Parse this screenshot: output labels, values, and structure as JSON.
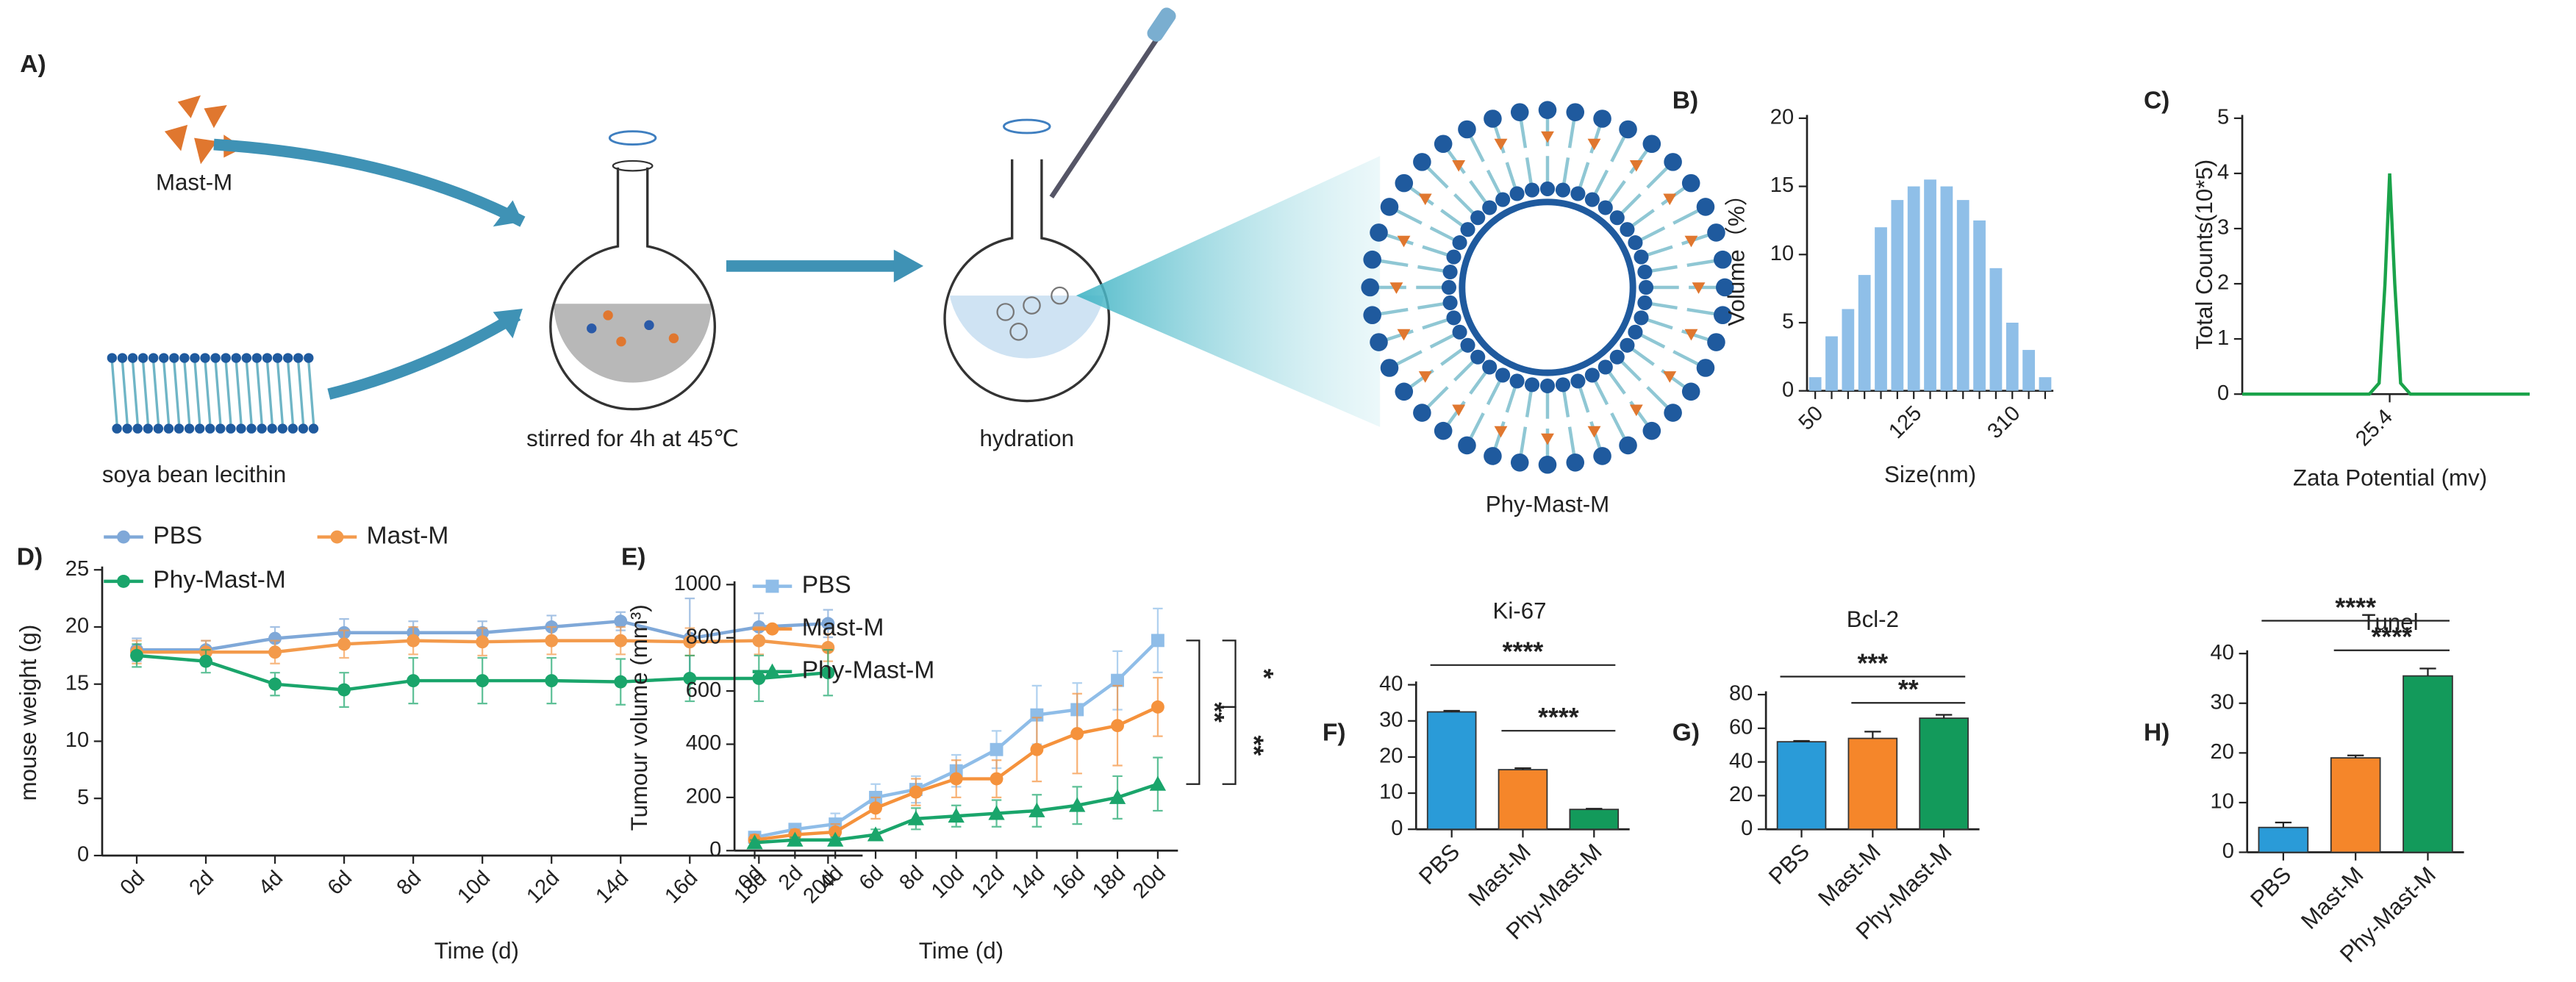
{
  "panels": [
    "A)",
    "B)",
    "C)",
    "D)",
    "E)",
    "F)",
    "G)",
    "H)"
  ],
  "diagram": {
    "drug": "Mast-M",
    "lipid": "soya bean lecithin",
    "step1": "stirred for 4h at 45℃",
    "step2": "hydration",
    "product": "Phy-Mast-M"
  },
  "chart_data": [
    {
      "type": "bar",
      "xlabel": "Size(nm)",
      "ylabel": "Volume（%）",
      "categories": [
        "50",
        null,
        null,
        null,
        null,
        null,
        "125",
        null,
        null,
        null,
        null,
        null,
        "310",
        null,
        null
      ],
      "values": [
        1,
        4,
        6,
        8.5,
        12,
        14,
        15,
        15.5,
        15,
        14,
        12.5,
        9,
        5,
        3,
        1
      ],
      "color": "#8fbfe8",
      "ylim": [
        0,
        20
      ],
      "yticks": [
        0,
        5,
        10,
        15,
        20
      ]
    },
    {
      "type": "line",
      "xlabel": "Zata Potential (mv)",
      "ylabel": "Total Counts(10*5)",
      "x": [
        -50,
        -20,
        0,
        15,
        20,
        23,
        25.4,
        28,
        31,
        36,
        50,
        97
      ],
      "series": [
        {
          "color": "#1aa34a",
          "values": [
            0,
            0,
            0,
            0,
            0.2,
            2,
            4,
            2,
            0.2,
            0,
            0,
            0
          ]
        }
      ],
      "xlim": [
        -50,
        97
      ],
      "xticks": [
        25.4
      ],
      "ylim": [
        0,
        5
      ],
      "yticks": [
        0,
        1,
        2,
        3,
        4,
        5
      ]
    },
    {
      "type": "line",
      "xlabel": "Time (d)",
      "ylabel": "mouse weight (g)",
      "categories": [
        "0d",
        "2d",
        "4d",
        "6d",
        "8d",
        "10d",
        "12d",
        "14d",
        "16d",
        "18d",
        "20d"
      ],
      "series": [
        {
          "name": "PBS",
          "color": "#7fa8d8",
          "marker": "circle",
          "values": [
            18,
            18,
            19,
            19.5,
            19.5,
            19.5,
            20,
            20.5,
            19,
            20,
            20.3
          ],
          "errors": [
            1,
            0.8,
            1,
            1.2,
            1,
            1,
            1,
            0.8,
            3.5,
            1.2,
            1.2
          ]
        },
        {
          "name": "Mast-M",
          "color": "#f39a4b",
          "marker": "circle",
          "values": [
            17.8,
            17.8,
            17.8,
            18.5,
            18.8,
            18.7,
            18.8,
            18.8,
            18.7,
            18.8,
            18.2
          ],
          "errors": [
            1,
            1,
            1,
            1.2,
            1.2,
            1.2,
            1.2,
            1.2,
            1.2,
            1.2,
            1.2
          ]
        },
        {
          "name": "Phy-Mast-M",
          "color": "#1aa56b",
          "marker": "circle",
          "values": [
            17.5,
            17,
            15,
            14.5,
            15.3,
            15.3,
            15.3,
            15.2,
            15.5,
            15.5,
            16
          ],
          "errors": [
            1,
            1,
            1,
            1.5,
            2,
            2,
            2,
            2,
            2,
            2,
            2
          ]
        }
      ],
      "ylim": [
        0,
        25
      ],
      "yticks": [
        0,
        5,
        10,
        15,
        20,
        25
      ]
    },
    {
      "type": "line",
      "xlabel": "Time (d)",
      "ylabel": "Tumour volume (mm³)",
      "categories": [
        "0d",
        "2d",
        "4d",
        "6d",
        "8d",
        "10d",
        "12d",
        "14d",
        "16d",
        "18d",
        "20d"
      ],
      "series": [
        {
          "name": "PBS",
          "color": "#8fbde8",
          "marker": "square",
          "values": [
            50,
            80,
            100,
            200,
            230,
            300,
            380,
            510,
            530,
            640,
            790
          ],
          "errors": [
            20,
            20,
            40,
            50,
            50,
            60,
            70,
            110,
            100,
            110,
            120
          ]
        },
        {
          "name": "Mast-M",
          "color": "#f5923c",
          "marker": "circle",
          "values": [
            40,
            60,
            70,
            160,
            220,
            270,
            270,
            380,
            440,
            470,
            540
          ],
          "errors": [
            20,
            20,
            30,
            40,
            50,
            70,
            70,
            120,
            150,
            150,
            110
          ]
        },
        {
          "name": "Phy-Mast-M",
          "color": "#1aa56b",
          "marker": "triangle",
          "values": [
            30,
            40,
            40,
            60,
            120,
            130,
            140,
            150,
            170,
            200,
            250
          ],
          "errors": [
            10,
            10,
            10,
            20,
            40,
            40,
            50,
            60,
            70,
            80,
            100
          ]
        }
      ],
      "ylim": [
        0,
        1000
      ],
      "yticks": [
        0,
        200,
        400,
        600,
        800,
        1000
      ],
      "annotations": [
        "*",
        "**",
        "**"
      ]
    },
    {
      "type": "bar",
      "title": "Ki-67",
      "categories": [
        "PBS",
        "Mast-M",
        "Phy-Mast-M"
      ],
      "values": [
        32.5,
        16.5,
        5.5
      ],
      "errors": [
        0.3,
        0.4,
        0.2
      ],
      "colors": [
        "#2a9bd8",
        "#f5862a",
        "#139a5b"
      ],
      "ylim": [
        0,
        40
      ],
      "yticks": [
        0,
        10,
        20,
        30,
        40
      ],
      "annotations": [
        "****",
        "****"
      ]
    },
    {
      "type": "bar",
      "title": "Bcl-2",
      "categories": [
        "PBS",
        "Mast-M",
        "Phy-Mast-M"
      ],
      "values": [
        52,
        54,
        66
      ],
      "errors": [
        0.5,
        4,
        2
      ],
      "colors": [
        "#2a9bd8",
        "#f5862a",
        "#139a5b"
      ],
      "ylim": [
        0,
        80
      ],
      "yticks": [
        0,
        20,
        40,
        60,
        80
      ],
      "annotations": [
        "***",
        "**"
      ]
    },
    {
      "type": "bar",
      "title": "Tunel",
      "categories": [
        "PBS",
        "Mast-M",
        "Phy-Mast-M"
      ],
      "values": [
        5,
        19,
        35.5
      ],
      "errors": [
        1,
        0.5,
        1.5
      ],
      "colors": [
        "#2a9bd8",
        "#f5862a",
        "#139a5b"
      ],
      "ylim": [
        0,
        40
      ],
      "yticks": [
        0,
        10,
        20,
        30,
        40
      ],
      "annotations": [
        "****",
        "****"
      ]
    }
  ]
}
